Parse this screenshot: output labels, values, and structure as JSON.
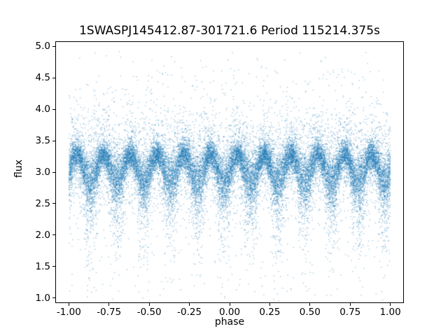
{
  "chart_data": {
    "type": "scatter",
    "title": "1SWASPJ145412.87-301721.6 Period 115214.375s",
    "xlabel": "phase",
    "ylabel": "flux",
    "xlim": [
      -1.08,
      1.08
    ],
    "ylim": [
      0.93,
      5.07
    ],
    "xticks": [
      -1.0,
      -0.75,
      -0.5,
      -0.25,
      0.0,
      0.25,
      0.5,
      0.75,
      1.0
    ],
    "xtick_labels": [
      "-1.00",
      "-0.75",
      "-0.50",
      "-0.25",
      "0.00",
      "0.25",
      "0.50",
      "0.75",
      "1.00"
    ],
    "yticks": [
      1.0,
      1.5,
      2.0,
      2.5,
      3.0,
      3.5,
      4.0,
      4.5,
      5.0
    ],
    "ytick_labels": [
      "1.0",
      "1.5",
      "2.0",
      "2.5",
      "3.0",
      "3.5",
      "4.0",
      "4.5",
      "5.0"
    ],
    "grid": false,
    "legend_position": "none",
    "marker_color": "#1f77b4",
    "marker_alpha": 0.4,
    "marker_size": 1.4,
    "series_model": {
      "description": "Phase-folded light curve: dense oscillating band of ~28000 points, 12 brightness peaks across phase -1..1, mean flux ~3.07, oscillation amplitude ~0.21, deeper fanned scatter at minima down to ~2.0, sparse outliers spanning flux 1.0-4.92",
      "seed": 42,
      "n_core": 20000,
      "n_scatter": 7000,
      "n_outliers": 500,
      "x_min": -1.0,
      "x_max": 1.0,
      "base_mean": 3.07,
      "base_amplitude": 0.21,
      "cycles_per_phase_unit": 6,
      "phase_offset": 0.05,
      "core_sigma": 0.11,
      "dip_widen": 0.9,
      "dip_tail_prob": 0.18,
      "dip_tail_scale": 0.45,
      "scatter_sigma": 0.38,
      "outlier_y_min": 1.0,
      "outlier_y_max": 4.92
    }
  }
}
